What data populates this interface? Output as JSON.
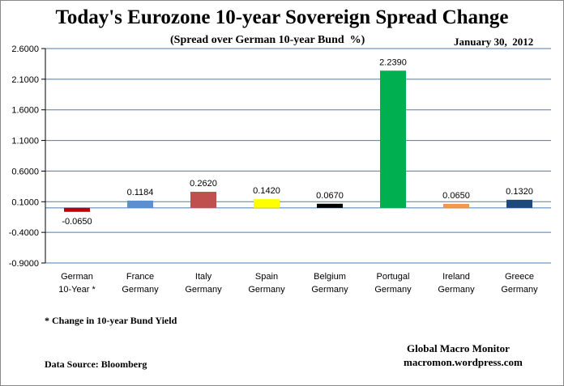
{
  "chart_data": {
    "type": "bar",
    "title": "Today's Eurozone 10-year Sovereign Spread Change",
    "subtitle": "(Spread over German 10-year Bund  %)",
    "date_label": "January 30,  2012",
    "categories": [
      [
        "German",
        "10-Year *"
      ],
      [
        "France",
        "Germany"
      ],
      [
        "Italy",
        "Germany"
      ],
      [
        "Spain",
        "Germany"
      ],
      [
        "Belgium",
        "Germany"
      ],
      [
        "Portugal",
        "Germany"
      ],
      [
        "Ireland",
        "Germany"
      ],
      [
        "Greece",
        "Germany"
      ]
    ],
    "values": [
      -0.065,
      0.1184,
      0.262,
      0.142,
      0.067,
      2.239,
      0.065,
      0.132
    ],
    "data_labels": [
      "-0.0650",
      "0.1184",
      "0.2620",
      "0.1420",
      "0.0670",
      "2.2390",
      "0.0650",
      "0.1320"
    ],
    "colors": [
      "#c00000",
      "#5b8fd0",
      "#c0504d",
      "#ffff00",
      "#000000",
      "#00b050",
      "#f79646",
      "#1f497d"
    ],
    "ylim": [
      -0.9,
      2.6
    ],
    "yticks": [
      2.6,
      2.1,
      1.6,
      1.1,
      0.6,
      0.1,
      -0.4,
      -0.9
    ],
    "ytick_labels": [
      "2.6000",
      "2.1000",
      "1.6000",
      "1.1000",
      "0.6000",
      "0.1000",
      "-0.4000",
      "-0.9000"
    ],
    "baseline": 0.0,
    "grid": true,
    "xlabel": "",
    "ylabel": ""
  },
  "footnote": "* Change in 10-year Bund Yield",
  "source": "Data Source:  Bloomberg",
  "brand": {
    "name": "Global Macro Monitor",
    "url": "macromon.wordpress.com"
  }
}
